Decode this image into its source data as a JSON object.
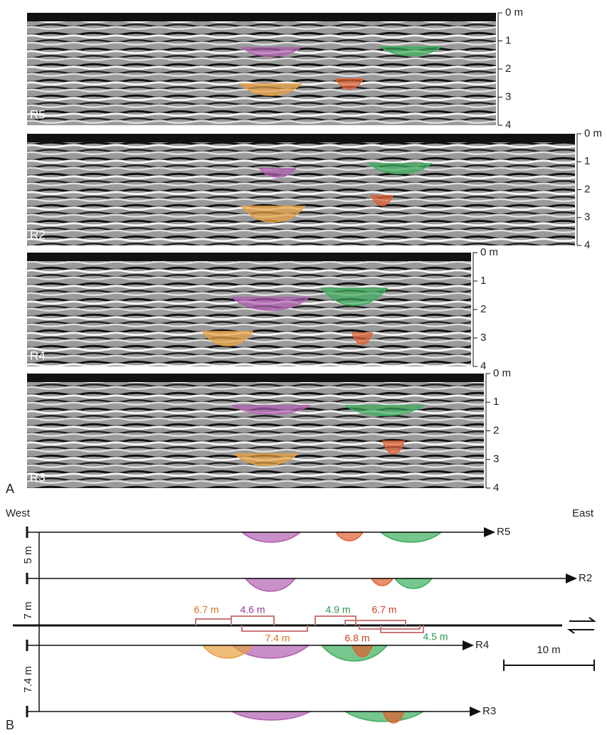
{
  "panel_a": {
    "label": "A",
    "profiles": [
      {
        "name": "R5",
        "depth_labels": [
          "0 m",
          "1",
          "2",
          "3",
          "4"
        ]
      },
      {
        "name": "R2",
        "depth_labels": [
          "0 m",
          "1",
          "2",
          "3",
          "4"
        ]
      },
      {
        "name": "R4",
        "depth_labels": [
          "0 m",
          "1",
          "2",
          "3",
          "4"
        ]
      },
      {
        "name": "R3",
        "depth_labels": [
          "0 m",
          "1",
          "2",
          "3",
          "4"
        ]
      }
    ]
  },
  "panel_b": {
    "label": "B",
    "west": "West",
    "east": "East",
    "lines": [
      "R5",
      "R2",
      "R4",
      "R3"
    ],
    "spacings": [
      "5 m",
      "7 m",
      "7.4 m"
    ],
    "offsets": [
      "6.7 m",
      "4.6 m",
      "7.4 m",
      "4.9 m",
      "6.7 m",
      "6.8 m",
      "4.5 m"
    ],
    "scale": "10 m"
  }
}
